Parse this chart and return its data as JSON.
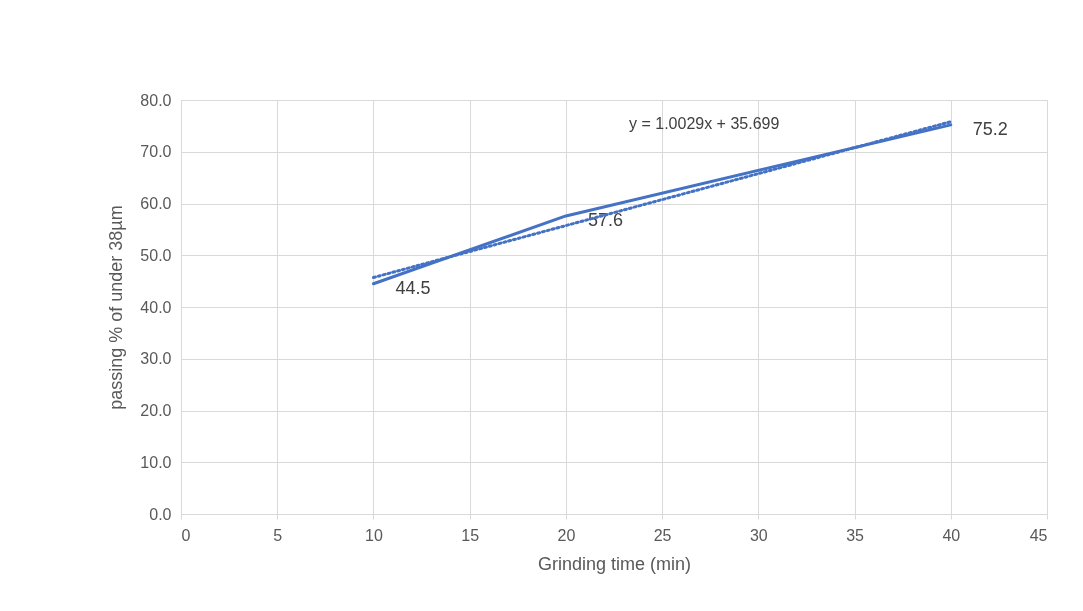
{
  "chart_data": {
    "type": "line",
    "xlabel": "Grinding time (min)",
    "ylabel": "passing % of under 38µm",
    "xlim": [
      0,
      45
    ],
    "xticks": [
      0,
      5,
      10,
      15,
      20,
      25,
      30,
      35,
      40,
      45
    ],
    "ylim": [
      0,
      80
    ],
    "yticks": [
      {
        "value": 0,
        "label": "0.0"
      },
      {
        "value": 10,
        "label": "10.0"
      },
      {
        "value": 20,
        "label": "20.0"
      },
      {
        "value": 30,
        "label": "30.0"
      },
      {
        "value": 40,
        "label": "40.0"
      },
      {
        "value": 50,
        "label": "50.0"
      },
      {
        "value": 60,
        "label": "60.0"
      },
      {
        "value": 70,
        "label": "70.0"
      },
      {
        "value": 80,
        "label": "80.0"
      }
    ],
    "grid": true,
    "marker": "none",
    "line_style": "solid",
    "series": [
      {
        "color": "#4472c4",
        "x": [
          10,
          20,
          40
        ],
        "values": [
          44.5,
          57.6,
          75.2
        ],
        "value_labels": [
          "44.5",
          "57.6",
          "75.2"
        ]
      },
      {
        "type": "line",
        "line_style": "dotted",
        "color": "#4472c4",
        "x": [
          10,
          40
        ],
        "values": [
          45.7,
          75.8
        ]
      }
    ],
    "annotations": [
      "y = 1.0029x + 35.699"
    ]
  }
}
